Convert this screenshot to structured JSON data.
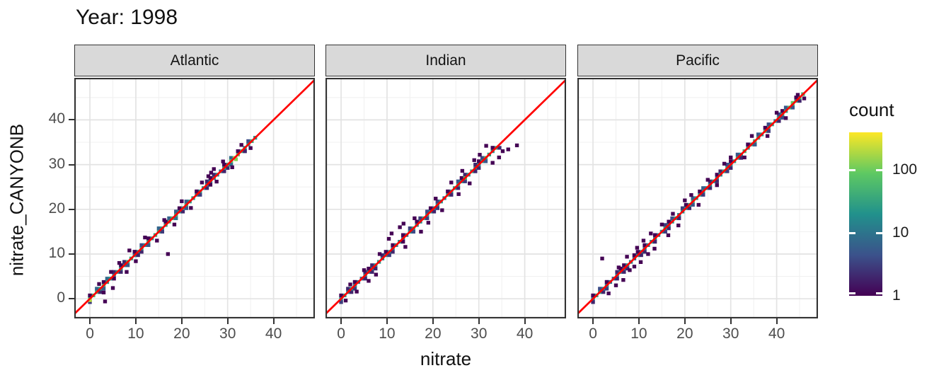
{
  "title": "Year: 1998",
  "axes": {
    "x_title": "nitrate",
    "y_title": "nitrate_CANYONB"
  },
  "colors": {
    "strip_bg": "#d9d9d9",
    "panel_border": "#333333",
    "grid_major": "#e3e3e3",
    "grid_minor": "#f1f1f1",
    "axis_text": "#4d4d4d",
    "text": "#111111",
    "reference_line": "#ff0000",
    "panel_bg": "#ffffff"
  },
  "chart_data": {
    "type": "heatmap",
    "subtype": "bin2d-faceted-scatter",
    "title": "Year: 1998",
    "xlabel": "nitrate",
    "ylabel": "nitrate_CANYONB",
    "x_range": [
      -3.4,
      49.0
    ],
    "y_range": [
      -4.4,
      49.4
    ],
    "x_ticks": [
      0,
      10,
      20,
      30,
      40
    ],
    "y_ticks": [
      0,
      10,
      20,
      30,
      40
    ],
    "minor_ticks": [
      5,
      15,
      25,
      35,
      45
    ],
    "grid": "on",
    "bin_size": 0.75,
    "reference_line": {
      "equation": "y = x",
      "color": "#ff0000"
    },
    "legend": {
      "title": "count",
      "position": "right",
      "scale": "log10",
      "tick_values": [
        100,
        10,
        1
      ],
      "max_count": 400,
      "viridis_stops": [
        [
          0,
          "#440154"
        ],
        [
          0.25,
          "#3b528b"
        ],
        [
          0.5,
          "#21918c"
        ],
        [
          0.75,
          "#5ec962"
        ],
        [
          1,
          "#fde725"
        ]
      ]
    },
    "facets": [
      {
        "label": "Atlantic",
        "diagonal_extent": [
          0,
          36
        ],
        "diagonal_segments": [
          {
            "from": 0,
            "to": 4,
            "count": 60
          },
          {
            "from": 4,
            "to": 8,
            "count": 25
          },
          {
            "from": 8,
            "to": 10,
            "count": 45
          },
          {
            "from": 10,
            "to": 13,
            "count": 30
          },
          {
            "from": 13,
            "to": 17,
            "count": 50
          },
          {
            "from": 17,
            "to": 19,
            "count": 90
          },
          {
            "from": 19,
            "to": 23,
            "count": 45
          },
          {
            "from": 23,
            "to": 26,
            "count": 30
          },
          {
            "from": 26,
            "to": 29,
            "count": 20
          },
          {
            "from": 29,
            "to": 31,
            "count": 60
          },
          {
            "from": 31,
            "to": 33,
            "count": 150
          },
          {
            "from": 33,
            "to": 36,
            "count": 40
          }
        ],
        "hotspots": [
          {
            "x": 0,
            "y": -0.3,
            "count": 220
          },
          {
            "x": 31.8,
            "y": 31.2,
            "count": 130
          }
        ],
        "outliers": [
          [
            2,
            3.3
          ],
          [
            3,
            1.4
          ],
          [
            3.3,
            -0.6
          ],
          [
            4.6,
            6
          ],
          [
            5,
            2.4
          ],
          [
            6.4,
            8
          ],
          [
            8,
            6
          ],
          [
            8.6,
            10.8
          ],
          [
            10,
            8.4
          ],
          [
            12,
            13.7
          ],
          [
            14.6,
            13
          ],
          [
            17,
            10
          ],
          [
            16.2,
            17.6
          ],
          [
            18.4,
            16.6
          ],
          [
            20,
            21.8
          ],
          [
            22,
            20.3
          ],
          [
            24.4,
            26
          ],
          [
            25.8,
            27.4
          ],
          [
            26.4,
            28.2
          ],
          [
            27,
            29
          ],
          [
            27.6,
            26.2
          ],
          [
            29,
            30.7
          ],
          [
            31,
            29.4
          ],
          [
            33,
            34.4
          ],
          [
            35,
            33.7
          ]
        ]
      },
      {
        "label": "Indian",
        "diagonal_extent": [
          0,
          34.5
        ],
        "diagonal_segments": [
          {
            "from": 0,
            "to": 3,
            "count": 30
          },
          {
            "from": 3,
            "to": 7,
            "count": 15
          },
          {
            "from": 7,
            "to": 11,
            "count": 25
          },
          {
            "from": 11,
            "to": 15,
            "count": 20
          },
          {
            "from": 15,
            "to": 19,
            "count": 35
          },
          {
            "from": 19,
            "to": 23,
            "count": 25
          },
          {
            "from": 23,
            "to": 27,
            "count": 40
          },
          {
            "from": 27,
            "to": 31,
            "count": 30
          },
          {
            "from": 31,
            "to": 34.5,
            "count": 45
          }
        ],
        "hotspots": [
          {
            "x": 27,
            "y": 27,
            "count": 60
          }
        ],
        "outliers": [
          [
            1,
            -0.4
          ],
          [
            2,
            3.2
          ],
          [
            3.4,
            1.6
          ],
          [
            5,
            6.4
          ],
          [
            6,
            4
          ],
          [
            7.6,
            5.4
          ],
          [
            8.4,
            10
          ],
          [
            10.4,
            13.4
          ],
          [
            11,
            14.6
          ],
          [
            12.8,
            16
          ],
          [
            13.6,
            16.8
          ],
          [
            14,
            11.6
          ],
          [
            16,
            18
          ],
          [
            17.4,
            15
          ],
          [
            19,
            17
          ],
          [
            20.6,
            22.4
          ],
          [
            22,
            19.8
          ],
          [
            24,
            26
          ],
          [
            25.6,
            23.4
          ],
          [
            26.4,
            28.6
          ],
          [
            28,
            25.8
          ],
          [
            29,
            31
          ],
          [
            30.2,
            32.2
          ],
          [
            31.6,
            34.2
          ],
          [
            33,
            30.4
          ],
          [
            34.4,
            31.6
          ],
          [
            35.2,
            33
          ],
          [
            36.4,
            33.4
          ],
          [
            38.3,
            34.3
          ]
        ]
      },
      {
        "label": "Pacific",
        "diagonal_extent": [
          0,
          46
        ],
        "diagonal_segments": [
          {
            "from": 0,
            "to": 3,
            "count": 35
          },
          {
            "from": 3,
            "to": 7,
            "count": 15
          },
          {
            "from": 7,
            "to": 12,
            "count": 20
          },
          {
            "from": 12,
            "to": 16,
            "count": 25
          },
          {
            "from": 16,
            "to": 20,
            "count": 30
          },
          {
            "from": 20,
            "to": 24,
            "count": 45
          },
          {
            "from": 24,
            "to": 28,
            "count": 25
          },
          {
            "from": 28,
            "to": 33,
            "count": 35
          },
          {
            "from": 33,
            "to": 38,
            "count": 50
          },
          {
            "from": 38,
            "to": 42,
            "count": 35
          },
          {
            "from": 42,
            "to": 46,
            "count": 60
          }
        ],
        "hotspots": [
          {
            "x": 43.5,
            "y": 43.8,
            "count": 90
          }
        ],
        "outliers": [
          [
            2,
            9
          ],
          [
            3.4,
            1.2
          ],
          [
            5,
            3
          ],
          [
            5.6,
            7
          ],
          [
            6.6,
            4.2
          ],
          [
            7.4,
            9.4
          ],
          [
            8,
            6.4
          ],
          [
            9,
            7.2
          ],
          [
            9.6,
            11.4
          ],
          [
            10.4,
            8.2
          ],
          [
            11,
            13
          ],
          [
            12,
            10
          ],
          [
            12.6,
            14.6
          ],
          [
            13.4,
            11.2
          ],
          [
            15,
            16.6
          ],
          [
            16.4,
            14.2
          ],
          [
            17.4,
            19
          ],
          [
            18.6,
            16.4
          ],
          [
            20,
            22
          ],
          [
            21.4,
            23.2
          ],
          [
            23,
            21
          ],
          [
            25,
            26.6
          ],
          [
            27,
            25.4
          ],
          [
            28.6,
            30.2
          ],
          [
            30,
            31.6
          ],
          [
            33,
            31.6
          ],
          [
            34.6,
            36.4
          ],
          [
            38,
            36.4
          ],
          [
            40,
            41.6
          ],
          [
            42,
            40.4
          ],
          [
            44.6,
            45.6
          ],
          [
            46,
            44.8
          ]
        ]
      }
    ]
  }
}
